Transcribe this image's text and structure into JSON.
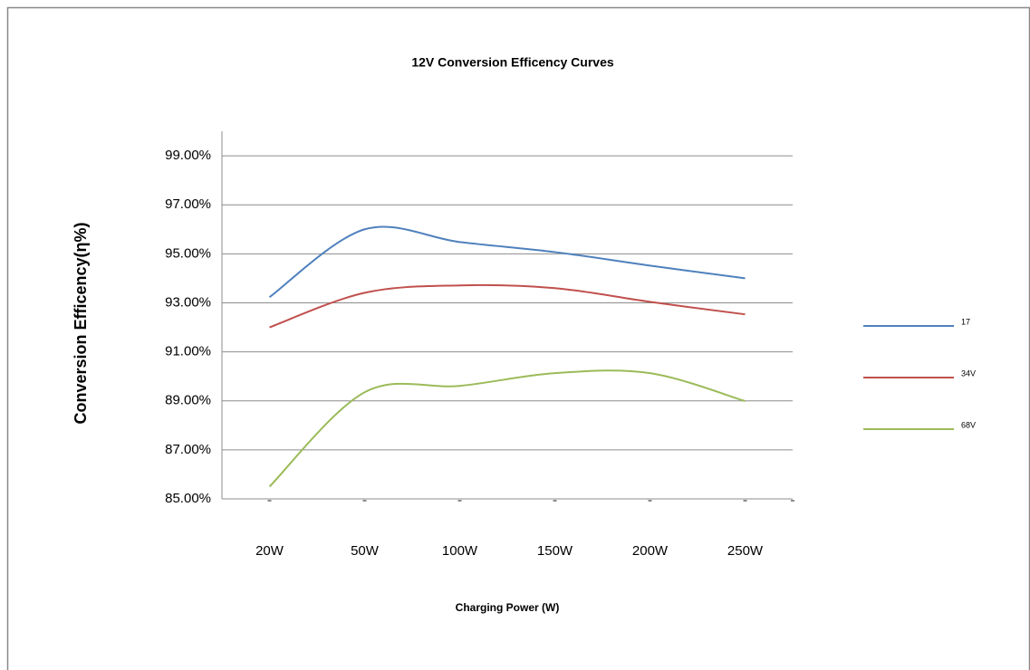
{
  "chart_data": {
    "type": "line",
    "title": "12V  Conversion Efficency Curves",
    "x_label": "Charging  Power (W)",
    "y_label": "Conversion Efficency(η%)",
    "categories": [
      "20W",
      "50W",
      "100W",
      "150W",
      "200W",
      "250W"
    ],
    "series": [
      {
        "name": "17",
        "color": "#4f81bd",
        "values": [
          93.23,
          96.0,
          95.48,
          95.07,
          94.52,
          94.0
        ]
      },
      {
        "name": "34V",
        "color": "#c0504d",
        "values": [
          92.0,
          93.41,
          93.71,
          93.6,
          93.04,
          92.53
        ]
      },
      {
        "name": "68V",
        "color": "#9bbb59",
        "values": [
          85.5,
          89.35,
          89.61,
          90.13,
          90.13,
          88.99
        ]
      }
    ],
    "ylim": [
      85,
      100
    ],
    "yticks": [
      {
        "value": 85,
        "label": "85.00%"
      },
      {
        "value": 87,
        "label": "87.00%"
      },
      {
        "value": 89,
        "label": "89.00%"
      },
      {
        "value": 91,
        "label": "91.00%"
      },
      {
        "value": 93,
        "label": "93.00%"
      },
      {
        "value": 95,
        "label": "95.00%"
      },
      {
        "value": 97,
        "label": "97.00%"
      },
      {
        "value": 99,
        "label": "99.00%"
      }
    ],
    "grid": true,
    "smooth": true,
    "legend": "right"
  }
}
